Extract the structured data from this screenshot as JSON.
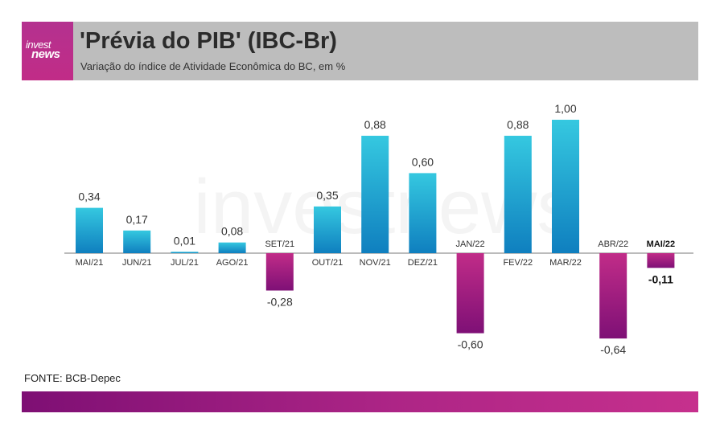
{
  "header": {
    "logo_line1": "invest",
    "logo_line2": "news",
    "title": "'Prévia do PIB' (IBC-Br)",
    "subtitle": "Variação do índice de Atividade Econômica do BC, em %"
  },
  "watermark": "investnews",
  "source": "FONTE: BCB-Depec",
  "colors": {
    "positive_top": "#35c8e0",
    "positive_bottom": "#0f7fbf",
    "negative_top": "#c12c88",
    "negative_bottom": "#7e1076",
    "highlight_text": "#111111"
  },
  "chart_data": {
    "type": "bar",
    "categories": [
      "MAI/21",
      "JUN/21",
      "JUL/21",
      "AGO/21",
      "SET/21",
      "OUT/21",
      "NOV/21",
      "DEZ/21",
      "JAN/22",
      "FEV/22",
      "MAR/22",
      "ABR/22",
      "MAI/22"
    ],
    "values": [
      0.34,
      0.17,
      0.01,
      0.08,
      -0.28,
      0.35,
      0.88,
      0.6,
      -0.6,
      0.88,
      1.0,
      -0.64,
      -0.11
    ],
    "value_labels": [
      "0,34",
      "0,17",
      "0,01",
      "0,08",
      "-0,28",
      "0,35",
      "0,88",
      "0,60",
      "-0,60",
      "0,88",
      "1,00",
      "-0,64",
      "-0,11"
    ],
    "highlight_last": true,
    "title": "'Prévia do PIB' (IBC-Br)",
    "subtitle": "Variação do índice de Atividade Econômica do BC, em %",
    "ylim": [
      -0.64,
      1.0
    ],
    "grid": false,
    "legend": "none"
  }
}
